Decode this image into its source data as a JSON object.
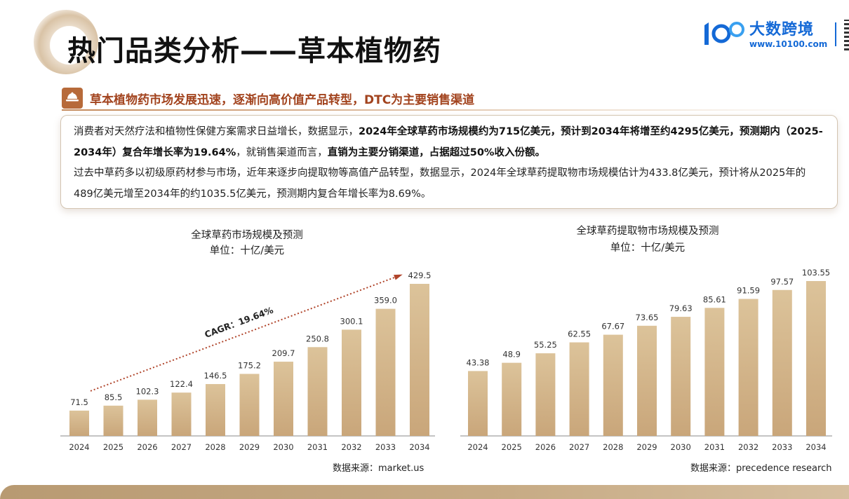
{
  "header": {
    "title": "热门品类分析——草本植物药",
    "logo_name": "大数跨境",
    "logo_url": "www.10100.com"
  },
  "section": {
    "subhead": "草本植物药市场发展迅速，逐渐向高价值产品转型，DTC为主要销售渠道",
    "icon": "store-icon"
  },
  "summary": {
    "p1_intro": "消费者对天然疗法和植物性保健方案需求日益增长，数据显示，",
    "p1_bold1": "2024年全球草药市场规模约为715亿美元，预计到2034年将增至约4295亿美元，预测期内（2025-2034年）复合年增长率为19.64%",
    "p1_mid": "，就销售渠道而言，",
    "p1_bold2": "直销为主要分销渠道，占据超过50%收入份额。",
    "p2": "过去中草药多以初级原药材参与市场，近年来逐步向提取物等高值产品转型，数据显示，2024年全球草药提取物市场规模估计为433.8亿美元，预计将从2025年的489亿美元增至2034年的约1035.5亿美元，预测期内复合年增长率为8.69%。"
  },
  "chart_data": [
    {
      "type": "bar",
      "title": "全球草药市场规模及预测",
      "subtitle": "单位：十亿/美元",
      "categories": [
        "2024",
        "2025",
        "2026",
        "2027",
        "2028",
        "2029",
        "2030",
        "2031",
        "2032",
        "2033",
        "2034"
      ],
      "values": [
        71.5,
        85.5,
        102.3,
        122.4,
        146.5,
        175.2,
        209.7,
        250.8,
        300.1,
        359.0,
        429.5
      ],
      "value_labels": [
        "71.5",
        "85.5",
        "102.3",
        "122.4",
        "146.5",
        "175.2",
        "209.7",
        "250.8",
        "300.1",
        "359.0",
        "429.5"
      ],
      "annotation": "CAGR：19.64%",
      "source": "数据来源：market.us",
      "ylim": [
        0,
        429.5
      ],
      "grid": false,
      "bar_color_top": "#dcc39a",
      "bar_color_bottom": "#c9a67a",
      "arrow_color": "#b0442a"
    },
    {
      "type": "bar",
      "title": "全球草药提取物市场规模及预测",
      "subtitle": "单位：十亿/美元",
      "categories": [
        "2024",
        "2025",
        "2026",
        "2027",
        "2028",
        "2029",
        "2030",
        "2031",
        "2032",
        "2033",
        "2034"
      ],
      "values": [
        43.38,
        48.9,
        55.25,
        62.55,
        67.67,
        73.65,
        79.63,
        85.61,
        91.59,
        97.57,
        103.55
      ],
      "value_labels": [
        "43.38",
        "48.9",
        "55.25",
        "62.55",
        "67.67",
        "73.65",
        "79.63",
        "85.61",
        "91.59",
        "97.57",
        "103.55"
      ],
      "source": "数据来源：precedence research",
      "ylim": [
        0,
        103.55
      ],
      "grid": false,
      "bar_color_top": "#dcc39a",
      "bar_color_bottom": "#c9a67a"
    }
  ]
}
